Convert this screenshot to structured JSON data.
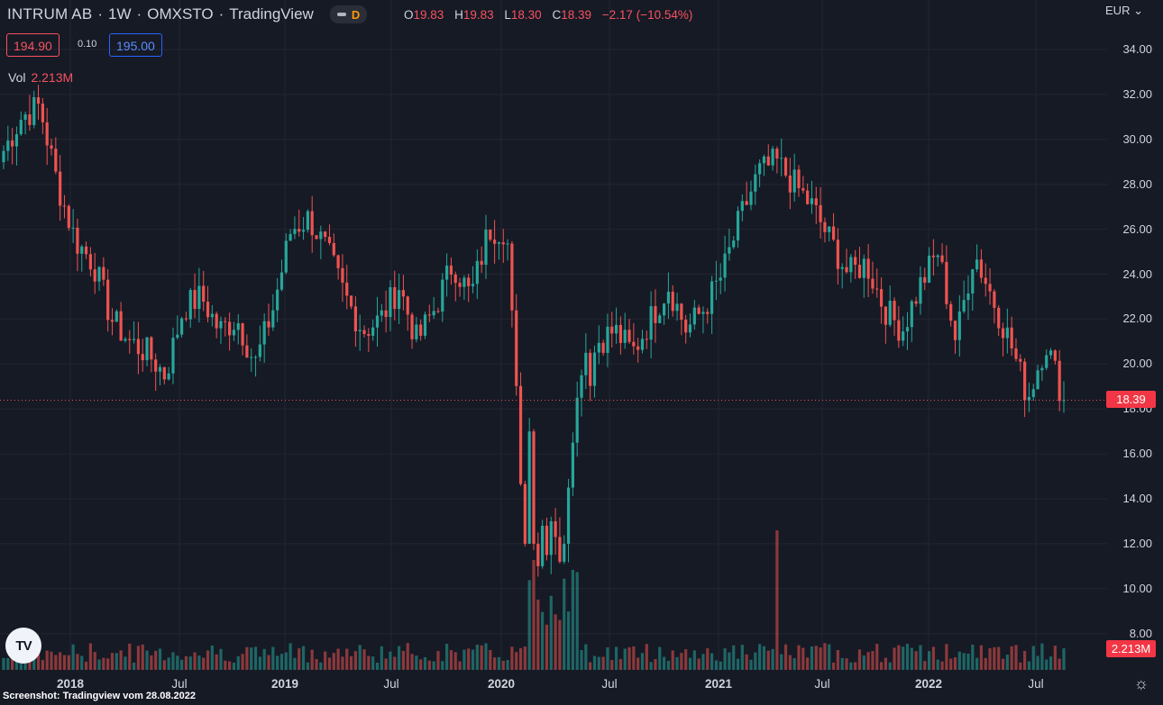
{
  "header": {
    "symbol": "INTRUM AB",
    "interval": "1W",
    "exchange": "OMXSTO",
    "source": "TradingView",
    "toggle_badge": "D",
    "ohlc": {
      "o_label": "O",
      "o": "19.83",
      "h_label": "H",
      "h": "19.83",
      "l_label": "L",
      "l": "18.30",
      "c_label": "C",
      "c": "18.39",
      "change": "−2.17 (−10.54%)"
    },
    "bid": "194.90",
    "spread": "0.10",
    "ask": "195.00",
    "currency": "EUR"
  },
  "volume_legend": {
    "label": "Vol",
    "value": "2.213M"
  },
  "price_axis": {
    "labels": [
      "34.00",
      "32.00",
      "30.00",
      "28.00",
      "26.00",
      "24.00",
      "22.00",
      "20.00",
      "18.00",
      "16.00",
      "14.00",
      "12.00",
      "10.00",
      "8.00"
    ],
    "current_price": "18.39",
    "current_volume": "2.213M"
  },
  "time_axis": {
    "labels": [
      "2018",
      "Jul",
      "2019",
      "Jul",
      "2020",
      "Jul",
      "2021",
      "Jul",
      "2022",
      "Jul"
    ]
  },
  "colors": {
    "up": "#26a69a",
    "down": "#ef5350",
    "background": "#161a25",
    "grid": "#232632"
  },
  "caption": "Screenshot: Tradingview vom 28.08.2022",
  "icons": {
    "logo": "tradingview-logo",
    "settings": "gear-icon"
  },
  "chart_data": {
    "type": "candlestick",
    "title": "INTRUM AB · 1W · OMXSTO",
    "ylim": [
      8,
      35
    ],
    "series": [
      {
        "name": "price_close",
        "points": [
          {
            "x": "2017-11",
            "y": 29.5
          },
          {
            "x": "2017-12",
            "y": 31.0
          },
          {
            "x": "2018-01",
            "y": 31.5
          },
          {
            "x": "2018-01-20",
            "y": 28.0
          },
          {
            "x": "2018-02",
            "y": 25.5
          },
          {
            "x": "2018-03",
            "y": 24.5
          },
          {
            "x": "2018-04",
            "y": 22.0
          },
          {
            "x": "2018-05",
            "y": 21.0
          },
          {
            "x": "2018-06",
            "y": 20.5
          },
          {
            "x": "2018-07",
            "y": 19.5
          },
          {
            "x": "2018-08",
            "y": 22.5
          },
          {
            "x": "2018-09",
            "y": 23.0
          },
          {
            "x": "2018-10",
            "y": 21.5
          },
          {
            "x": "2018-11",
            "y": 22.0
          },
          {
            "x": "2018-12",
            "y": 20.0
          },
          {
            "x": "2019-01",
            "y": 22.5
          },
          {
            "x": "2019-02",
            "y": 26.0
          },
          {
            "x": "2019-03",
            "y": 26.5
          },
          {
            "x": "2019-04",
            "y": 25.0
          },
          {
            "x": "2019-05",
            "y": 23.0
          },
          {
            "x": "2019-06",
            "y": 21.5
          },
          {
            "x": "2019-07",
            "y": 22.0
          },
          {
            "x": "2019-08",
            "y": 23.5
          },
          {
            "x": "2019-09",
            "y": 21.0
          },
          {
            "x": "2019-10",
            "y": 22.5
          },
          {
            "x": "2019-11",
            "y": 24.5
          },
          {
            "x": "2019-12",
            "y": 23.0
          },
          {
            "x": "2020-01",
            "y": 26.0
          },
          {
            "x": "2020-02",
            "y": 26.0
          },
          {
            "x": "2020-03",
            "y": 12.0
          },
          {
            "x": "2020-04",
            "y": 12.5
          },
          {
            "x": "2020-05",
            "y": 11.0
          },
          {
            "x": "2020-06",
            "y": 17.0
          },
          {
            "x": "2020-07",
            "y": 21.0
          },
          {
            "x": "2020-08",
            "y": 21.5
          },
          {
            "x": "2020-09",
            "y": 20.5
          },
          {
            "x": "2020-10",
            "y": 22.0
          },
          {
            "x": "2020-11",
            "y": 23.5
          },
          {
            "x": "2020-12",
            "y": 21.5
          },
          {
            "x": "2021-01",
            "y": 22.5
          },
          {
            "x": "2021-02",
            "y": 24.0
          },
          {
            "x": "2021-03",
            "y": 26.5
          },
          {
            "x": "2021-04",
            "y": 28.5
          },
          {
            "x": "2021-05",
            "y": 29.0
          },
          {
            "x": "2021-06",
            "y": 28.0
          },
          {
            "x": "2021-07",
            "y": 27.0
          },
          {
            "x": "2021-08",
            "y": 25.5
          },
          {
            "x": "2021-09",
            "y": 24.0
          },
          {
            "x": "2021-10",
            "y": 24.5
          },
          {
            "x": "2021-11",
            "y": 22.5
          },
          {
            "x": "2021-12",
            "y": 21.5
          },
          {
            "x": "2022-01",
            "y": 23.5
          },
          {
            "x": "2022-02",
            "y": 25.0
          },
          {
            "x": "2022-03",
            "y": 21.0
          },
          {
            "x": "2022-04",
            "y": 25.0
          },
          {
            "x": "2022-05",
            "y": 23.0
          },
          {
            "x": "2022-06",
            "y": 21.0
          },
          {
            "x": "2022-07",
            "y": 18.5
          },
          {
            "x": "2022-08",
            "y": 21.0
          },
          {
            "x": "2022-08-26",
            "y": 18.39
          }
        ]
      },
      {
        "name": "volume_spikes",
        "points": [
          {
            "x": "2020-03",
            "y": "high"
          },
          {
            "x": "2021-05",
            "y": "high"
          }
        ]
      }
    ],
    "grid": true,
    "legend": "top-left"
  }
}
